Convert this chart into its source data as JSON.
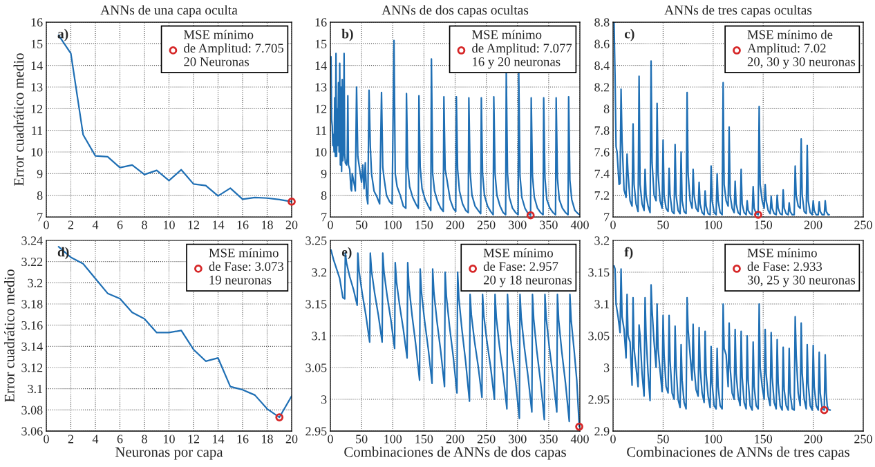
{
  "chart_data": [
    {
      "type": "line",
      "title": "ANNs de una capa oculta",
      "ylabel": "Error cuadrático medio",
      "xlim": [
        0,
        20
      ],
      "ylim": [
        7,
        16
      ],
      "xticks": [
        0,
        2,
        4,
        6,
        8,
        10,
        12,
        14,
        16,
        18,
        20
      ],
      "yticks": [
        7,
        8,
        9,
        10,
        11,
        12,
        13,
        14,
        15,
        16
      ],
      "grid": true,
      "legend": "top right",
      "annotations": [
        "a)"
      ],
      "series": [
        {
          "color": "#1f6fb4",
          "x": [
            1,
            2,
            3,
            4,
            5,
            6,
            7,
            8,
            9,
            10,
            11,
            12,
            13,
            14,
            15,
            16,
            17,
            18,
            19,
            20
          ],
          "values": [
            15.4,
            14.55,
            10.8,
            9.82,
            9.78,
            9.28,
            9.4,
            8.96,
            9.15,
            8.68,
            9.18,
            8.52,
            8.45,
            7.97,
            8.33,
            7.82,
            7.9,
            7.87,
            7.8,
            7.705
          ]
        },
        {
          "type": "scatter",
          "marker": "circle",
          "name": "MSE mínimo\nde Amplitud: 7.705\n20 Neuronas",
          "color": "#d62728",
          "x": [
            20
          ],
          "values": [
            7.705
          ]
        }
      ]
    },
    {
      "type": "line",
      "title": "ANNs de dos capas ocultas",
      "xlim": [
        0,
        400
      ],
      "ylim": [
        7,
        16
      ],
      "xticks": [
        0,
        50,
        100,
        150,
        200,
        250,
        300,
        350,
        400
      ],
      "yticks": [
        7,
        8,
        9,
        10,
        11,
        12,
        13,
        14,
        15,
        16
      ],
      "grid": true,
      "legend": "top right",
      "annotations": [
        "b)"
      ],
      "series": [
        {
          "color": "#1f6fb4",
          "x": [
            1,
            2,
            3,
            4,
            5,
            6,
            7,
            8,
            9,
            10,
            11,
            12,
            13,
            14,
            15,
            16,
            17,
            18,
            19,
            20,
            21,
            22,
            23,
            24,
            26,
            27,
            28,
            29,
            31,
            33,
            34,
            35,
            37,
            39,
            40,
            42,
            44,
            47,
            50,
            52,
            54,
            56,
            58,
            60,
            62,
            64,
            66,
            70,
            75,
            79,
            82,
            84,
            86,
            90,
            95,
            99,
            102,
            104,
            107,
            112,
            117,
            121,
            122,
            124,
            127,
            132,
            137,
            141,
            142,
            144,
            147,
            152,
            157,
            161,
            162,
            164,
            167,
            172,
            177,
            181,
            182,
            184,
            187,
            192,
            197,
            201,
            202,
            204,
            207,
            212,
            217,
            221,
            222,
            224,
            227,
            232,
            237,
            241,
            242,
            244,
            247,
            252,
            257,
            261,
            262,
            264,
            267,
            272,
            277,
            281,
            282,
            284,
            287,
            292,
            297,
            301,
            302,
            304,
            307,
            312,
            317,
            321,
            322,
            324,
            327,
            332,
            337,
            341,
            342,
            344,
            347,
            352,
            357,
            361,
            362,
            364,
            367,
            372,
            377,
            381,
            382,
            384,
            387,
            392,
            397,
            400
          ],
          "values": [
            14.4,
            11.5,
            11.2,
            10.3,
            10.8,
            10.0,
            12.5,
            9.8,
            14.55,
            9.8,
            12.0,
            10.3,
            13.2,
            10.0,
            14.1,
            9.4,
            13.0,
            9.1,
            13.35,
            9.6,
            10.0,
            14.55,
            9.9,
            9.5,
            9.4,
            9.7,
            12.6,
            9.4,
            9.2,
            8.3,
            8.2,
            9.0,
            8.7,
            8.4,
            8.2,
            13.0,
            9.8,
            9.2,
            8.6,
            9.4,
            8.3,
            9.5,
            8.0,
            7.6,
            12.85,
            10.3,
            9.0,
            8.2,
            7.9,
            7.6,
            12.75,
            9.3,
            8.8,
            8.0,
            7.7,
            7.6,
            15.15,
            9.0,
            8.4,
            8.0,
            7.5,
            7.4,
            12.7,
            9.3,
            8.4,
            7.9,
            7.6,
            7.4,
            12.6,
            9.3,
            8.3,
            7.8,
            7.5,
            7.3,
            14.3,
            9.0,
            8.2,
            7.7,
            7.4,
            7.25,
            12.55,
            9.2,
            8.7,
            7.8,
            7.4,
            7.25,
            12.55,
            9.2,
            8.2,
            7.6,
            7.3,
            7.2,
            12.5,
            9.1,
            8.0,
            7.5,
            7.3,
            7.15,
            12.5,
            9.0,
            8.0,
            7.5,
            7.25,
            7.1,
            12.55,
            9.0,
            8.0,
            7.5,
            7.2,
            7.1,
            13.7,
            9.0,
            7.9,
            7.4,
            7.2,
            7.1,
            13.7,
            8.9,
            7.9,
            7.4,
            7.15,
            7.077,
            12.5,
            8.9,
            7.9,
            7.4,
            7.2,
            7.1,
            12.5,
            8.8,
            7.8,
            7.4,
            7.2,
            7.1,
            12.5,
            8.8,
            7.8,
            7.4,
            7.2,
            7.1,
            12.55,
            8.7,
            7.8,
            7.3,
            7.15,
            7.1
          ]
        },
        {
          "type": "scatter",
          "marker": "circle",
          "name": "MSE mínimo\nde Amplitud: 7.077\n16 y 20 neuronas",
          "color": "#d62728",
          "x": [
            321
          ],
          "values": [
            7.077
          ]
        }
      ]
    },
    {
      "type": "line",
      "title": "ANNs de tres capas ocultas",
      "xlim": [
        0,
        250
      ],
      "ylim": [
        7,
        8.8
      ],
      "xticks": [
        0,
        50,
        100,
        150,
        200,
        250
      ],
      "yticks": [
        7,
        7.2,
        7.4,
        7.6,
        7.8,
        8,
        8.2,
        8.4,
        8.6,
        8.8
      ],
      "grid": true,
      "legend": "top right",
      "annotations": [
        "c)"
      ],
      "series": [
        {
          "color": "#1f6fb4",
          "x": [
            1,
            2,
            3,
            4,
            6,
            7,
            8,
            9,
            11,
            13,
            14,
            15,
            17,
            19,
            20,
            21,
            23,
            25,
            26,
            27,
            29,
            31,
            32,
            33,
            35,
            37,
            38,
            39,
            41,
            43,
            44,
            45,
            47,
            49,
            50,
            51,
            53,
            55,
            56,
            57,
            59,
            61,
            62,
            63,
            65,
            67,
            68,
            69,
            71,
            73,
            74,
            75,
            77,
            79,
            80,
            81,
            83,
            85,
            86,
            87,
            89,
            91,
            92,
            93,
            95,
            97,
            98,
            99,
            101,
            103,
            104,
            105,
            107,
            109,
            110,
            111,
            113,
            115,
            116,
            117,
            119,
            121,
            122,
            123,
            125,
            127,
            128,
            129,
            131,
            133,
            134,
            135,
            137,
            139,
            140,
            141,
            143,
            145,
            146,
            147,
            149,
            151,
            152,
            153,
            155,
            157,
            158,
            159,
            161,
            163,
            164,
            165,
            167,
            169,
            170,
            171,
            173,
            175,
            176,
            177,
            179,
            181,
            182,
            183,
            185,
            187,
            188,
            189,
            191,
            193,
            194,
            195,
            197,
            199,
            200,
            201,
            203,
            205,
            206,
            207,
            209,
            211,
            212,
            213,
            215,
            216
          ],
          "values": [
            8.8,
            8.3,
            7.65,
            7.6,
            7.3,
            7.31,
            8.18,
            7.7,
            7.25,
            7.18,
            7.58,
            7.4,
            7.15,
            7.1,
            7.86,
            7.3,
            7.12,
            7.05,
            8.3,
            7.3,
            7.12,
            7.06,
            7.44,
            7.2,
            7.1,
            7.04,
            8.44,
            7.5,
            7.2,
            7.15,
            8.05,
            7.4,
            7.15,
            7.08,
            7.71,
            7.2,
            7.08,
            7.05,
            7.45,
            7.2,
            7.05,
            7.03,
            7.67,
            7.2,
            7.06,
            7.03,
            7.6,
            7.15,
            7.05,
            7.03,
            8.15,
            7.4,
            7.15,
            7.08,
            7.44,
            7.2,
            7.08,
            7.05,
            7.32,
            7.12,
            7.04,
            7.02,
            7.24,
            7.1,
            7.03,
            7.02,
            7.47,
            7.15,
            7.04,
            7.02,
            7.4,
            7.15,
            7.04,
            7.02,
            8.24,
            7.3,
            7.15,
            7.1,
            7.83,
            7.2,
            7.08,
            7.04,
            7.33,
            7.12,
            7.04,
            7.02,
            7.44,
            7.12,
            7.04,
            7.02,
            7.15,
            7.06,
            7.03,
            7.02,
            7.28,
            7.08,
            7.03,
            7.02,
            8.02,
            7.3,
            7.15,
            7.08,
            7.3,
            7.15,
            7.06,
            7.03,
            7.19,
            7.08,
            7.03,
            7.02,
            7.2,
            7.08,
            7.03,
            7.02,
            7.25,
            7.08,
            7.03,
            7.02,
            7.13,
            7.05,
            7.02,
            7.02,
            7.47,
            7.2,
            7.1,
            7.08,
            7.72,
            7.2,
            7.05,
            7.03,
            7.66,
            7.15,
            7.04,
            7.02,
            7.15,
            7.06,
            7.02,
            7.02,
            7.14,
            7.05,
            7.02,
            7.02,
            7.15,
            7.05,
            7.02,
            7.02
          ]
        },
        {
          "type": "scatter",
          "marker": "circle",
          "name": "MSE mínimo de\nAmplitud: 7.02\n20, 30 y 30 neuronas",
          "color": "#d62728",
          "x": [
            145
          ],
          "values": [
            7.02
          ]
        }
      ]
    },
    {
      "type": "line",
      "xlabel": "Neuronas por capa",
      "ylabel": "Error cuadrático medio",
      "xlim": [
        0,
        20
      ],
      "ylim": [
        3.06,
        3.24
      ],
      "xticks": [
        0,
        2,
        4,
        6,
        8,
        10,
        12,
        14,
        16,
        18,
        20
      ],
      "yticks": [
        3.06,
        3.08,
        3.1,
        3.12,
        3.14,
        3.16,
        3.18,
        3.2,
        3.22,
        3.24
      ],
      "grid": true,
      "legend": "top right",
      "annotations": [
        "d)"
      ],
      "series": [
        {
          "color": "#1f6fb4",
          "x": [
            1,
            2,
            3,
            4,
            5,
            6,
            7,
            8,
            9,
            10,
            11,
            12,
            13,
            14,
            15,
            16,
            17,
            18,
            19,
            20
          ],
          "values": [
            3.234,
            3.224,
            3.218,
            3.204,
            3.19,
            3.185,
            3.172,
            3.166,
            3.153,
            3.153,
            3.155,
            3.137,
            3.126,
            3.129,
            3.102,
            3.099,
            3.094,
            3.081,
            3.073,
            3.093
          ]
        },
        {
          "type": "scatter",
          "marker": "circle",
          "name": "MSE mínimo\nde Fase: 3.073\n19 neuronas",
          "color": "#d62728",
          "x": [
            19
          ],
          "values": [
            3.073
          ]
        }
      ]
    },
    {
      "type": "line",
      "xlabel": "Combinaciones de ANNs de dos capas",
      "xlim": [
        0,
        400
      ],
      "ylim": [
        2.95,
        3.25
      ],
      "xticks": [
        0,
        50,
        100,
        150,
        200,
        250,
        300,
        350,
        400
      ],
      "yticks": [
        2.95,
        3,
        3.05,
        3.1,
        3.15,
        3.2,
        3.25
      ],
      "grid": true,
      "legend": "top right",
      "annotations": [
        "e)"
      ],
      "series": [
        {
          "color": "#1f6fb4",
          "x": [
            1,
            5,
            10,
            15,
            20,
            23,
            24,
            26,
            31,
            37,
            43,
            44,
            46,
            51,
            57,
            63,
            64,
            66,
            71,
            77,
            83,
            84,
            86,
            91,
            97,
            103,
            104,
            106,
            111,
            117,
            123,
            124,
            126,
            131,
            137,
            143,
            144,
            146,
            151,
            157,
            163,
            164,
            166,
            171,
            177,
            183,
            184,
            186,
            191,
            197,
            203,
            204,
            206,
            211,
            217,
            223,
            224,
            226,
            231,
            237,
            243,
            244,
            246,
            251,
            257,
            263,
            264,
            266,
            271,
            277,
            283,
            284,
            286,
            291,
            297,
            303,
            304,
            306,
            311,
            317,
            323,
            324,
            326,
            331,
            337,
            343,
            344,
            346,
            351,
            357,
            363,
            364,
            366,
            371,
            377,
            383,
            384,
            386,
            391,
            395,
            399
          ],
          "values": [
            3.235,
            3.22,
            3.205,
            3.19,
            3.16,
            3.158,
            3.23,
            3.214,
            3.193,
            3.173,
            3.148,
            3.23,
            3.202,
            3.167,
            3.132,
            3.09,
            3.23,
            3.202,
            3.167,
            3.132,
            3.09,
            3.23,
            3.2,
            3.163,
            3.125,
            3.08,
            3.215,
            3.185,
            3.148,
            3.11,
            3.065,
            3.215,
            3.178,
            3.132,
            3.085,
            3.03,
            3.205,
            3.169,
            3.124,
            3.079,
            3.025,
            3.205,
            3.168,
            3.122,
            3.075,
            3.02,
            3.2,
            3.162,
            3.115,
            3.067,
            3.01,
            3.2,
            3.159,
            3.109,
            3.058,
            2.997,
            3.165,
            3.133,
            3.092,
            3.052,
            3.003,
            3.165,
            3.132,
            3.091,
            3.05,
            3.0,
            3.165,
            3.129,
            3.084,
            3.039,
            2.985,
            3.165,
            3.126,
            3.077,
            3.028,
            2.97,
            3.165,
            3.128,
            3.082,
            3.035,
            2.98,
            3.165,
            3.126,
            3.076,
            3.027,
            2.968,
            3.165,
            3.128,
            3.082,
            3.035,
            2.98,
            3.165,
            3.125,
            3.075,
            3.025,
            2.965,
            3.165,
            3.125,
            3.075,
            3.03,
            2.957
          ]
        },
        {
          "type": "scatter",
          "marker": "circle",
          "name": "MSE mínimo\nde Fase: 2.957\n20 y 18 neuronas",
          "color": "#d62728",
          "x": [
            399
          ],
          "values": [
            2.957
          ]
        }
      ]
    },
    {
      "type": "line",
      "xlabel": "Combinaciones de ANNs de tres capas",
      "xlim": [
        0,
        250
      ],
      "ylim": [
        2.9,
        3.2
      ],
      "xticks": [
        0,
        50,
        100,
        150,
        200,
        250
      ],
      "yticks": [
        2.9,
        2.95,
        3,
        3.05,
        3.1,
        3.15,
        3.2
      ],
      "grid": true,
      "legend": "top right",
      "annotations": [
        "f)"
      ],
      "series": [
        {
          "color": "#1f6fb4",
          "x": [
            1,
            2,
            3,
            5,
            7,
            8,
            9,
            11,
            13,
            14,
            15,
            17,
            19,
            20,
            21,
            23,
            25,
            26,
            27,
            29,
            31,
            32,
            33,
            35,
            37,
            38,
            39,
            41,
            43,
            44,
            45,
            47,
            49,
            50,
            51,
            53,
            55,
            56,
            57,
            59,
            61,
            62,
            63,
            65,
            67,
            68,
            69,
            71,
            73,
            74,
            75,
            77,
            79,
            80,
            81,
            83,
            85,
            86,
            87,
            89,
            91,
            92,
            93,
            95,
            97,
            98,
            99,
            101,
            103,
            104,
            105,
            107,
            109,
            110,
            111,
            113,
            115,
            116,
            117,
            119,
            121,
            122,
            123,
            125,
            127,
            128,
            129,
            131,
            133,
            134,
            135,
            137,
            139,
            140,
            141,
            143,
            145,
            146,
            147,
            149,
            151,
            152,
            153,
            155,
            157,
            158,
            159,
            161,
            163,
            164,
            165,
            167,
            169,
            170,
            171,
            173,
            175,
            176,
            177,
            179,
            181,
            182,
            183,
            185,
            187,
            188,
            189,
            191,
            193,
            194,
            195,
            197,
            199,
            200,
            201,
            203,
            205,
            206,
            207,
            209,
            211,
            212,
            213,
            214,
            215,
            217
          ],
          "values": [
            3.16,
            3.155,
            3.1,
            3.08,
            3.055,
            3.155,
            3.08,
            3.06,
            3.015,
            3.115,
            3.05,
            3.04,
            2.972,
            3.11,
            3.03,
            3.0,
            2.97,
            3.067,
            3.05,
            2.99,
            2.955,
            3.11,
            3.05,
            2.99,
            2.948,
            3.13,
            3.09,
            3.04,
            3.0,
            3.1,
            3.03,
            2.995,
            2.962,
            3.082,
            3.02,
            2.97,
            2.96,
            3.082,
            3.01,
            2.96,
            2.95,
            3.065,
            3.0,
            2.95,
            2.937,
            3.036,
            2.98,
            2.945,
            2.935,
            3.11,
            3.06,
            3.02,
            2.98,
            3.068,
            3.0,
            2.965,
            2.955,
            3.063,
            3.0,
            2.96,
            2.945,
            3.057,
            2.99,
            2.955,
            2.937,
            3.033,
            2.975,
            2.94,
            2.935,
            3.03,
            2.97,
            2.94,
            2.935,
            3.1,
            3.03,
            3.02,
            2.97,
            3.07,
            3.0,
            2.96,
            2.95,
            3.06,
            2.99,
            2.955,
            2.94,
            3.057,
            2.985,
            2.945,
            2.935,
            3.05,
            2.98,
            2.94,
            2.933,
            3.04,
            2.97,
            2.94,
            2.935,
            3.1,
            3.0,
            2.97,
            2.95,
            3.06,
            2.99,
            2.955,
            2.94,
            3.055,
            2.985,
            2.945,
            2.935,
            3.044,
            2.975,
            2.94,
            2.933,
            3.032,
            2.965,
            2.94,
            2.933,
            3.03,
            2.96,
            2.935,
            2.933,
            3.08,
            3.02,
            2.96,
            2.94,
            3.07,
            2.99,
            2.95,
            2.935,
            3.036,
            2.975,
            2.94,
            2.933,
            3.035,
            2.97,
            2.94,
            2.933,
            3.024,
            2.96,
            2.935,
            2.933,
            3.02,
            2.96,
            2.94,
            2.934,
            2.933
          ]
        },
        {
          "type": "scatter",
          "marker": "circle",
          "name": "MSE mínimo\nde Fase: 2.933\n30, 25 y 30 neuronas",
          "color": "#d62728",
          "x": [
            211
          ],
          "values": [
            2.933
          ]
        }
      ]
    }
  ]
}
